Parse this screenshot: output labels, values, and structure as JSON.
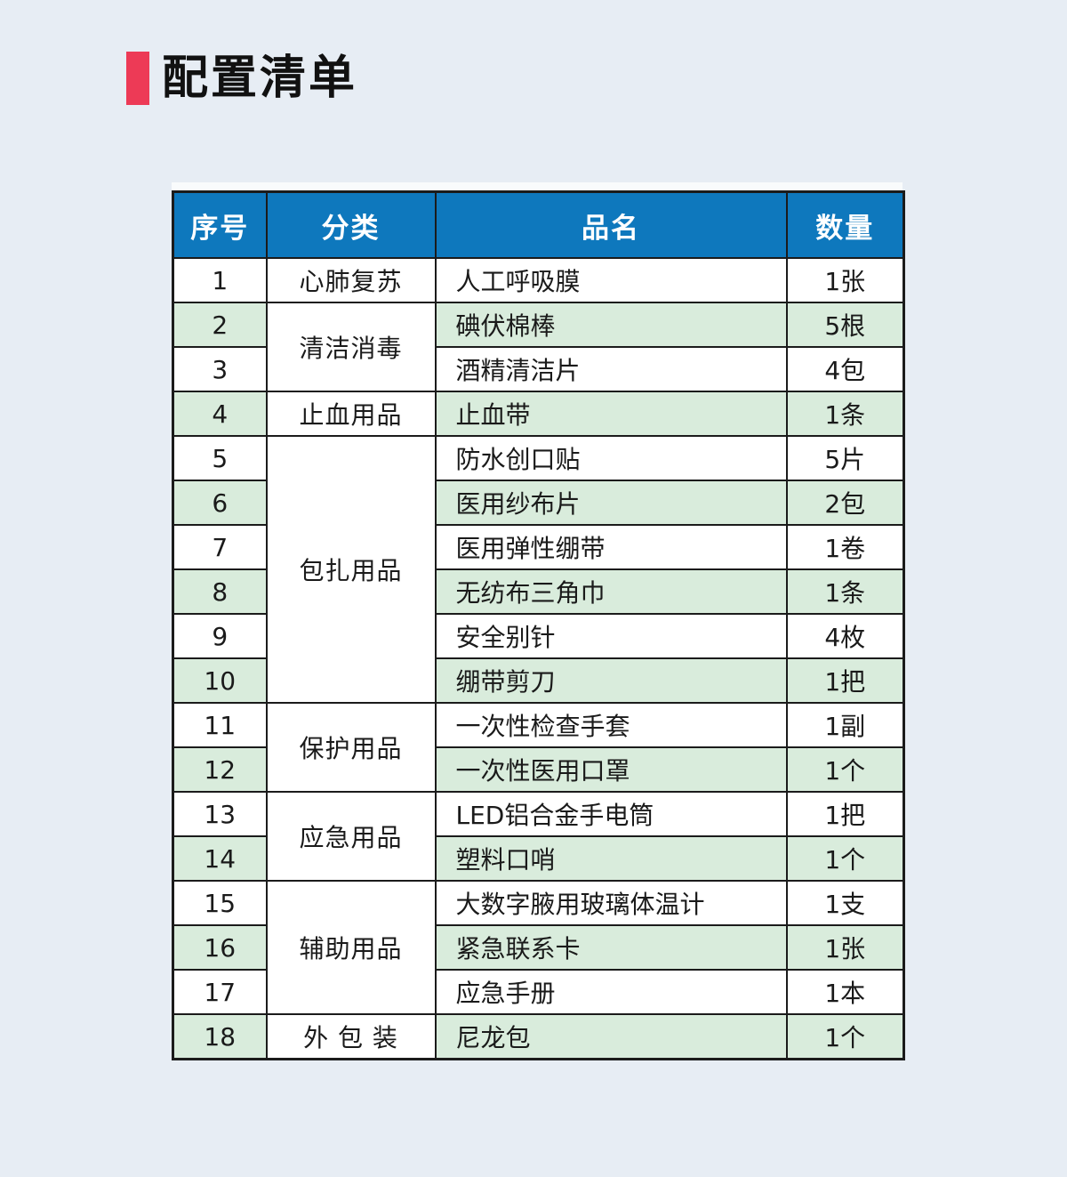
{
  "colors": {
    "page_background": "#e7edf4",
    "accent_red": "#ed3a56",
    "header_blue": "#0e78bd",
    "header_text": "#ffffff",
    "row_green": "#d9ecdc",
    "border_dark": "#1b1b1b"
  },
  "title": {
    "text": "配置清单"
  },
  "table": {
    "columns": [
      "序号",
      "分类",
      "品名",
      "数量"
    ],
    "categories": [
      {
        "label": "心肺复苏",
        "rowspan": 1
      },
      {
        "label": "清洁消毒",
        "rowspan": 2
      },
      {
        "label": "止血用品",
        "rowspan": 1
      },
      {
        "label": "包扎用品",
        "rowspan": 6
      },
      {
        "label": "保护用品",
        "rowspan": 2
      },
      {
        "label": "应急用品",
        "rowspan": 2
      },
      {
        "label": "辅助用品",
        "rowspan": 3
      },
      {
        "label": "外  包  装",
        "rowspan": 1
      }
    ],
    "rows": [
      {
        "no": "1",
        "name": "人工呼吸膜",
        "qty": "1张"
      },
      {
        "no": "2",
        "name": "碘伏棉棒",
        "qty": "5根"
      },
      {
        "no": "3",
        "name": "酒精清洁片",
        "qty": "4包"
      },
      {
        "no": "4",
        "name": "止血带",
        "qty": "1条"
      },
      {
        "no": "5",
        "name": "防水创口贴",
        "qty": "5片"
      },
      {
        "no": "6",
        "name": "医用纱布片",
        "qty": "2包"
      },
      {
        "no": "7",
        "name": "医用弹性绷带",
        "qty": "1卷"
      },
      {
        "no": "8",
        "name": "无纺布三角巾",
        "qty": "1条"
      },
      {
        "no": "9",
        "name": "安全别针",
        "qty": "4枚"
      },
      {
        "no": "10",
        "name": "绷带剪刀",
        "qty": "1把"
      },
      {
        "no": "11",
        "name": "一次性检查手套",
        "qty": "1副"
      },
      {
        "no": "12",
        "name": "一次性医用口罩",
        "qty": "1个"
      },
      {
        "no": "13",
        "name": "LED铝合金手电筒",
        "qty": "1把"
      },
      {
        "no": "14",
        "name": "塑料口哨",
        "qty": "1个"
      },
      {
        "no": "15",
        "name": "大数字腋用玻璃体温计",
        "qty": "1支"
      },
      {
        "no": "16",
        "name": "紧急联系卡",
        "qty": "1张"
      },
      {
        "no": "17",
        "name": "应急手册",
        "qty": "1本"
      },
      {
        "no": "18",
        "name": "尼龙包",
        "qty": "1个"
      }
    ]
  }
}
